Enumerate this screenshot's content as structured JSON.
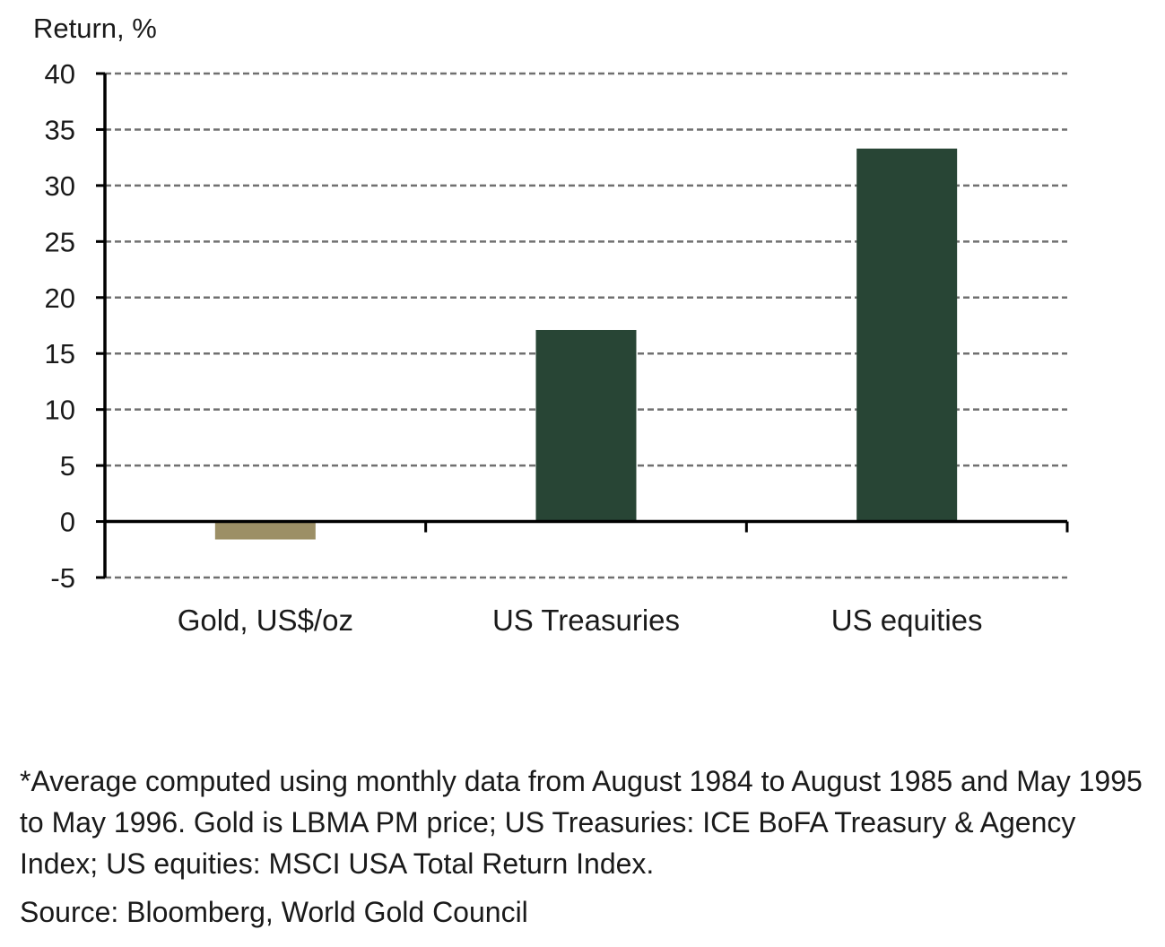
{
  "chart_data": {
    "type": "bar",
    "title": "",
    "xlabel": "",
    "ylabel": "Return, %",
    "categories": [
      "Gold, US$/oz",
      "US Treasuries",
      "US equities"
    ],
    "values": [
      -1.6,
      17.1,
      33.3
    ],
    "bar_colors": [
      "#9c8f66",
      "#284535",
      "#284535"
    ],
    "ylim": [
      -5,
      40
    ],
    "yticks": [
      40,
      35,
      30,
      25,
      20,
      15,
      10,
      5,
      0,
      -5
    ],
    "grid": true,
    "grid_style": "dashed",
    "legend": "none"
  },
  "footnote": "*Average computed using monthly data from August 1984 to August 1985 and May 1995 to May 1996. Gold is LBMA PM price; US Treasuries: ICE BoFA Treasury & Agency Index; US equities: MSCI USA Total Return Index.",
  "source": "Source: Bloomberg, World Gold Council"
}
